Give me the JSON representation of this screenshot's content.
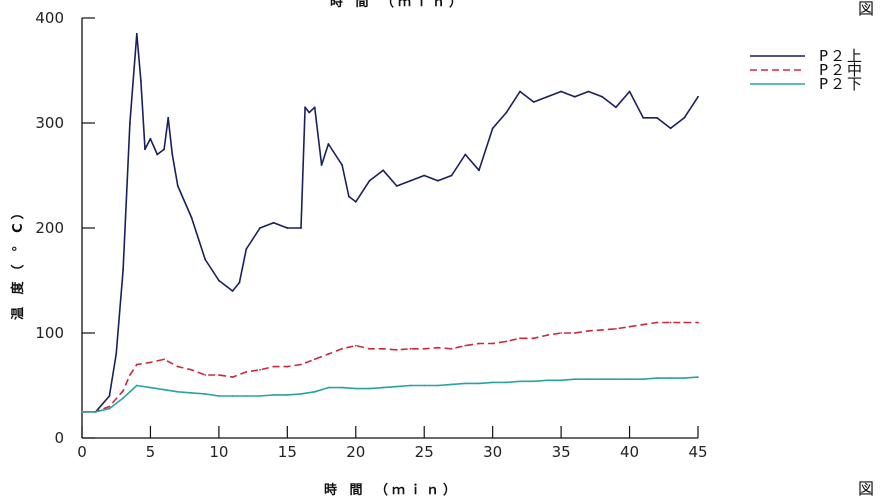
{
  "chart_data": {
    "type": "line",
    "title": "",
    "top_caption": "時 間 （ｍｉｎ）",
    "xlabel": "時 間 （ｍｉｎ）",
    "ylabel": "温 度（ ° C）",
    "corner_label_top": "図",
    "corner_label_bottom": "図",
    "xlim": [
      0,
      45
    ],
    "ylim": [
      0,
      400
    ],
    "xticks": [
      "0",
      "5",
      "10",
      "15",
      "20",
      "25",
      "30",
      "35",
      "40",
      "45"
    ],
    "yticks": [
      "0",
      "100",
      "200",
      "300",
      "400"
    ],
    "grid": false,
    "legend_position": "top-right",
    "series": [
      {
        "name": "P２上",
        "color": "#1a1f5e",
        "dash": "solid",
        "x": [
          0,
          1,
          2,
          2.5,
          3,
          3.5,
          4,
          4.3,
          4.6,
          5,
          5.5,
          6,
          6.3,
          6.6,
          7,
          8,
          9,
          10,
          11,
          11.5,
          12,
          13,
          14,
          15,
          16,
          16.3,
          16.6,
          17,
          17.5,
          18,
          19,
          19.5,
          20,
          21,
          22,
          23,
          24,
          25,
          26,
          27,
          28,
          29,
          30,
          31,
          32,
          33,
          34,
          35,
          36,
          37,
          38,
          39,
          40,
          41,
          42,
          43,
          44,
          45
        ],
        "y": [
          25,
          25,
          40,
          80,
          160,
          300,
          385,
          340,
          275,
          285,
          270,
          275,
          305,
          270,
          240,
          210,
          170,
          150,
          140,
          148,
          180,
          200,
          205,
          200,
          200,
          315,
          310,
          315,
          260,
          280,
          260,
          230,
          225,
          245,
          255,
          240,
          245,
          250,
          245,
          250,
          270,
          255,
          295,
          310,
          330,
          320,
          325,
          330,
          325,
          330,
          325,
          315,
          330,
          305,
          305,
          295,
          305,
          325
        ]
      },
      {
        "name": "P２中",
        "color": "#cc2a3a",
        "dash": "dashed",
        "x": [
          0,
          1,
          2,
          3,
          3.5,
          4,
          5,
          6,
          7,
          8,
          9,
          10,
          11,
          12,
          13,
          14,
          15,
          16,
          17,
          18,
          19,
          20,
          21,
          22,
          23,
          24,
          25,
          26,
          27,
          28,
          29,
          30,
          31,
          32,
          33,
          34,
          35,
          36,
          37,
          38,
          39,
          40,
          41,
          42,
          43,
          44,
          45
        ],
        "y": [
          25,
          25,
          30,
          45,
          60,
          70,
          72,
          75,
          68,
          65,
          60,
          60,
          58,
          63,
          65,
          68,
          68,
          70,
          75,
          80,
          85,
          88,
          85,
          85,
          84,
          85,
          85,
          86,
          85,
          88,
          90,
          90,
          92,
          95,
          95,
          98,
          100,
          100,
          102,
          103,
          104,
          106,
          108,
          110,
          110,
          110,
          110
        ]
      },
      {
        "name": "P２下",
        "color": "#2aa3a0",
        "dash": "solid",
        "x": [
          0,
          1,
          2,
          3,
          4,
          5,
          6,
          7,
          8,
          9,
          10,
          11,
          12,
          13,
          14,
          15,
          16,
          17,
          18,
          19,
          20,
          21,
          22,
          23,
          24,
          25,
          26,
          27,
          28,
          29,
          30,
          31,
          32,
          33,
          34,
          35,
          36,
          37,
          38,
          39,
          40,
          41,
          42,
          43,
          44,
          45
        ],
        "y": [
          25,
          25,
          28,
          38,
          50,
          48,
          46,
          44,
          43,
          42,
          40,
          40,
          40,
          40,
          41,
          41,
          42,
          44,
          48,
          48,
          47,
          47,
          48,
          49,
          50,
          50,
          50,
          51,
          52,
          52,
          53,
          53,
          54,
          54,
          55,
          55,
          56,
          56,
          56,
          56,
          56,
          56,
          57,
          57,
          57,
          58
        ]
      }
    ]
  }
}
